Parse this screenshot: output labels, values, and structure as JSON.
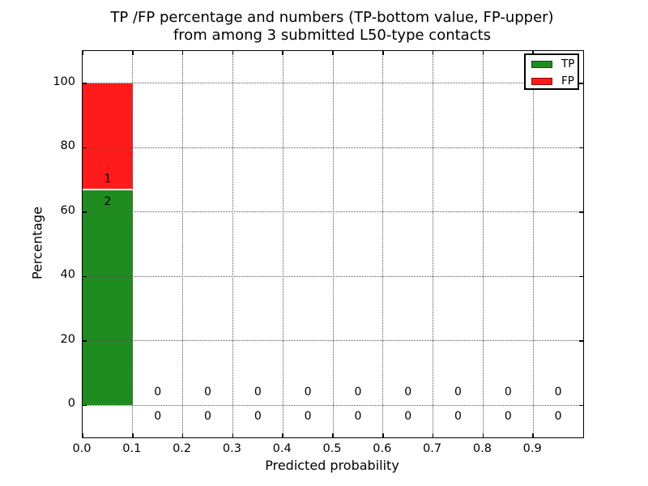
{
  "title": {
    "line1": "TP /FP percentage and numbers (TP-bottom value, FP-upper)",
    "line2": "from among 3 submitted L50-type contacts"
  },
  "axes": {
    "xlabel": "Predicted probability",
    "ylabel": "Percentage"
  },
  "legend": {
    "position": "upper right",
    "items": [
      {
        "label": "TP",
        "color": "#1f8c1f"
      },
      {
        "label": "FP",
        "color": "#ff1b1b"
      }
    ]
  },
  "chart_data": {
    "type": "bar",
    "stacked": true,
    "title": "TP /FP percentage and numbers (TP-bottom value, FP-upper)\nfrom among 3 submitted L50-type contacts",
    "xlabel": "Predicted probability",
    "ylabel": "Percentage",
    "xlim": [
      0.0,
      1.0
    ],
    "ylim": [
      -10,
      110
    ],
    "grid": "dotted",
    "legend_position": "upper right",
    "total_contacts": 3,
    "bin_width": 0.1,
    "bin_starts": [
      0.0,
      0.1,
      0.2,
      0.3,
      0.4,
      0.5,
      0.6,
      0.7,
      0.8,
      0.9
    ],
    "x_ticks": {
      "values": [
        0.0,
        0.1,
        0.2,
        0.3,
        0.4,
        0.5,
        0.6,
        0.7,
        0.8,
        0.9
      ],
      "labels": [
        "0.0",
        "0.1",
        "0.2",
        "0.3",
        "0.4",
        "0.5",
        "0.6",
        "0.7",
        "0.8",
        "0.9"
      ]
    },
    "y_ticks": {
      "values": [
        0,
        20,
        40,
        60,
        80,
        100
      ],
      "labels": [
        "0",
        "20",
        "40",
        "60",
        "80",
        "100"
      ]
    },
    "series": [
      {
        "name": "TP",
        "color": "#1f8c1f",
        "counts": [
          2,
          0,
          0,
          0,
          0,
          0,
          0,
          0,
          0,
          0
        ],
        "percent": [
          66.667,
          0,
          0,
          0,
          0,
          0,
          0,
          0,
          0,
          0
        ]
      },
      {
        "name": "FP",
        "color": "#ff1b1b",
        "counts": [
          1,
          0,
          0,
          0,
          0,
          0,
          0,
          0,
          0,
          0
        ],
        "percent": [
          33.333,
          0,
          0,
          0,
          0,
          0,
          0,
          0,
          0,
          0
        ]
      }
    ]
  }
}
